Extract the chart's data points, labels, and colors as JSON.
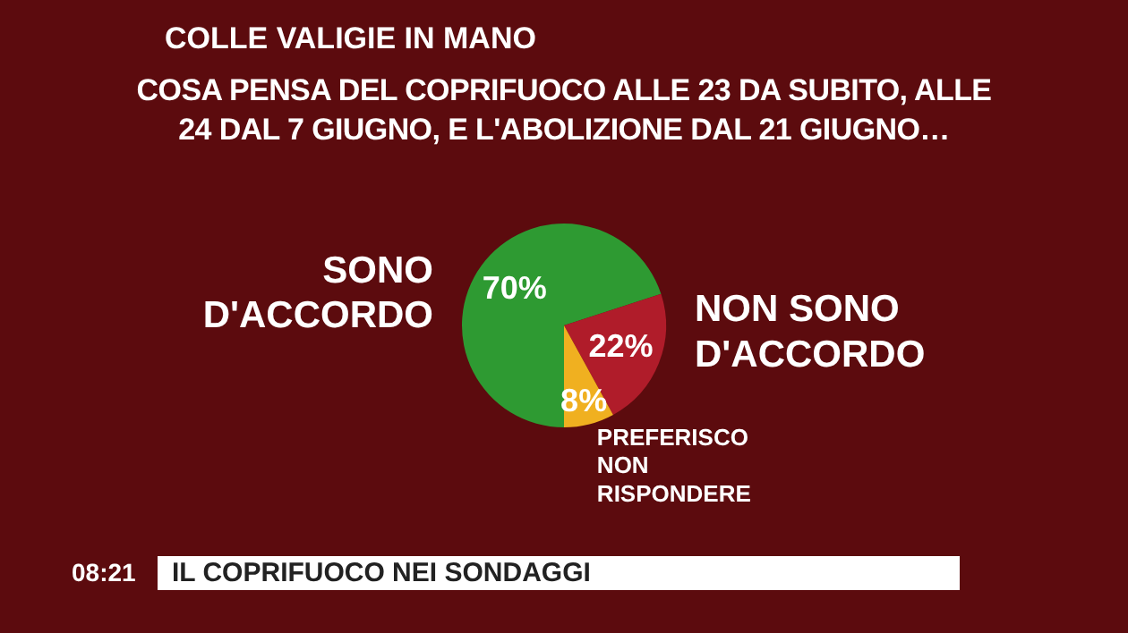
{
  "chart_data": {
    "type": "pie",
    "title": "COSA PENSA DEL COPRIFUOCO ALLE 23 DA SUBITO, ALLE 24 DAL 7 GIUGNO, E L'ABOLIZIONE DAL 21 GIUGNO…",
    "subtitle": "COLLE VALIGIE IN MANO",
    "categories": [
      "SONO D'ACCORDO",
      "NON SONO D'ACCORDO",
      "PREFERISCO NON RISPONDERE"
    ],
    "values": [
      70,
      22,
      8
    ],
    "colors": [
      "#2e9a32",
      "#b01c2a",
      "#f0b020"
    ],
    "value_labels": [
      "70%",
      "22%",
      "8%"
    ],
    "annotations": [
      "IL COPRIFUOCO NEI SONDAGGI",
      "08:21"
    ]
  }
}
